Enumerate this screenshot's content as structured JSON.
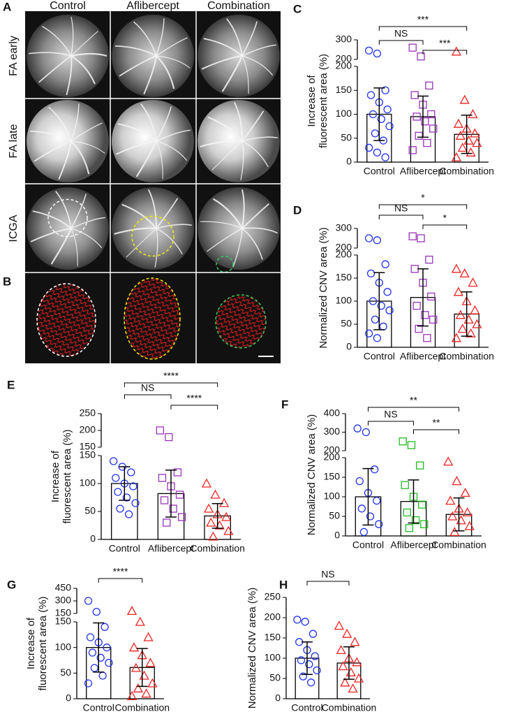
{
  "figure_a": {
    "label": "A",
    "columns": [
      "Control",
      "Aflibercept",
      "Combination"
    ],
    "rows": [
      "FA early",
      "FA late",
      "ICGA"
    ]
  },
  "figure_b": {
    "label": "B"
  },
  "chart_data": [
    {
      "type": "bar",
      "panel": "C",
      "ylabel": [
        "Increase of",
        "fluorescent area (%)"
      ],
      "categories": [
        "Control",
        "Aflibercept",
        "Combination"
      ],
      "values": [
        100,
        95,
        58
      ],
      "errors": [
        55,
        43,
        40
      ],
      "points": [
        [
          245,
          230,
          150,
          140,
          125,
          110,
          100,
          90,
          75,
          60,
          45,
          30,
          20,
          10
        ],
        [
          260,
          215,
          160,
          140,
          120,
          100,
          95,
          85,
          70,
          55,
          40,
          25
        ],
        [
          240,
          130,
          100,
          80,
          70,
          60,
          55,
          45,
          40,
          30,
          20,
          10
        ]
      ],
      "colors": [
        "#2233ee",
        "#9933bb",
        "#ee2222"
      ],
      "markers": [
        "circle",
        "square",
        "triangle"
      ],
      "ylim": [
        0,
        200
      ],
      "yticks": [
        0,
        50,
        100,
        150,
        200
      ],
      "upper_ylim": [
        200,
        300
      ],
      "upper_yticks": [
        200,
        300
      ],
      "significance": [
        {
          "from": 0,
          "to": 2,
          "label": "***"
        },
        {
          "from": 0,
          "to": 1,
          "label": "NS"
        },
        {
          "from": 1,
          "to": 2,
          "label": "***"
        }
      ]
    },
    {
      "type": "bar",
      "panel": "D",
      "ylabel": [
        "Normalized CNV area (%)"
      ],
      "categories": [
        "Control",
        "Aflibercept",
        "Combination"
      ],
      "values": [
        100,
        108,
        72
      ],
      "errors": [
        62,
        62,
        48
      ],
      "points": [
        [
          250,
          240,
          180,
          160,
          140,
          120,
          100,
          90,
          80,
          60,
          45,
          30,
          20
        ],
        [
          260,
          250,
          190,
          170,
          140,
          110,
          90,
          70,
          60,
          40,
          20
        ],
        [
          170,
          160,
          140,
          120,
          100,
          80,
          70,
          60,
          50,
          40,
          30,
          20
        ]
      ],
      "colors": [
        "#2233ee",
        "#9933bb",
        "#ee2222"
      ],
      "markers": [
        "circle",
        "square",
        "triangle"
      ],
      "ylim": [
        0,
        200
      ],
      "yticks": [
        0,
        50,
        100,
        150,
        200
      ],
      "upper_ylim": [
        200,
        300
      ],
      "upper_yticks": [
        200,
        300
      ],
      "significance": [
        {
          "from": 0,
          "to": 2,
          "label": "*"
        },
        {
          "from": 0,
          "to": 1,
          "label": "NS"
        },
        {
          "from": 1,
          "to": 2,
          "label": "*"
        }
      ]
    },
    {
      "type": "bar",
      "panel": "E",
      "ylabel": [
        "Increase of",
        "fluorescent area (%)"
      ],
      "categories": [
        "Control",
        "Aflibercept",
        "Combination"
      ],
      "values": [
        100,
        82,
        42
      ],
      "errors": [
        30,
        42,
        22
      ],
      "points": [
        [
          140,
          130,
          120,
          110,
          100,
          95,
          85,
          75,
          65,
          55,
          45
        ],
        [
          200,
          180,
          120,
          110,
          95,
          80,
          70,
          55,
          40,
          30
        ],
        [
          100,
          80,
          65,
          55,
          45,
          40,
          30,
          25,
          15,
          5
        ]
      ],
      "colors": [
        "#2233ee",
        "#9933bb",
        "#ee2222"
      ],
      "markers": [
        "circle",
        "square",
        "triangle"
      ],
      "ylim": [
        0,
        150
      ],
      "yticks": [
        0,
        50,
        100,
        150
      ],
      "upper_ylim": [
        150,
        250
      ],
      "upper_yticks": [
        150,
        200,
        250
      ],
      "significance": [
        {
          "from": 0,
          "to": 2,
          "label": "****"
        },
        {
          "from": 0,
          "to": 1,
          "label": "NS"
        },
        {
          "from": 1,
          "to": 2,
          "label": "****"
        }
      ]
    },
    {
      "type": "bar",
      "panel": "F",
      "ylabel": [
        "Normalized CNV area (%)"
      ],
      "categories": [
        "Control",
        "Aflibercept",
        "Combination"
      ],
      "values": [
        100,
        88,
        55
      ],
      "errors": [
        72,
        55,
        42
      ],
      "points": [
        [
          320,
          300,
          170,
          140,
          110,
          90,
          70,
          50,
          30,
          10
        ],
        [
          250,
          230,
          180,
          130,
          100,
          80,
          60,
          40,
          30,
          20
        ],
        [
          190,
          140,
          110,
          90,
          70,
          60,
          50,
          40,
          25,
          10
        ]
      ],
      "colors": [
        "#2233ee",
        "#22bb22",
        "#ee2222"
      ],
      "markers": [
        "circle",
        "square",
        "triangle"
      ],
      "ylim": [
        0,
        200
      ],
      "yticks": [
        0,
        50,
        100,
        150,
        200
      ],
      "upper_ylim": [
        200,
        400
      ],
      "upper_yticks": [
        200,
        300,
        400
      ],
      "significance": [
        {
          "from": 0,
          "to": 2,
          "label": "**"
        },
        {
          "from": 0,
          "to": 1,
          "label": "NS"
        },
        {
          "from": 1,
          "to": 2,
          "label": "**"
        }
      ]
    },
    {
      "type": "bar",
      "panel": "G",
      "ylabel": [
        "Increase of",
        "fluorescent area (%)"
      ],
      "categories": [
        "Control",
        "Combination"
      ],
      "values": [
        100,
        61
      ],
      "errors": [
        48,
        37
      ],
      "points": [
        [
          300,
          170,
          140,
          120,
          110,
          100,
          90,
          80,
          70,
          60,
          45,
          30
        ],
        [
          180,
          150,
          120,
          100,
          85,
          70,
          60,
          45,
          30,
          20,
          10,
          5
        ]
      ],
      "colors": [
        "#2233ee",
        "#ee2222"
      ],
      "markers": [
        "circle",
        "triangle"
      ],
      "ylim": [
        0,
        150
      ],
      "yticks": [
        0,
        50,
        100,
        150
      ],
      "upper_ylim": [
        150,
        450
      ],
      "upper_yticks": [
        150,
        300,
        450
      ],
      "significance": [
        {
          "from": 0,
          "to": 1,
          "label": "****"
        }
      ]
    },
    {
      "type": "bar",
      "panel": "H",
      "ylabel": [
        "Normalized CNV area (%)"
      ],
      "categories": [
        "Control",
        "Combination"
      ],
      "values": [
        100,
        88
      ],
      "errors": [
        40,
        40
      ],
      "points": [
        [
          195,
          190,
          160,
          140,
          120,
          105,
          95,
          85,
          70,
          55,
          40
        ],
        [
          180,
          160,
          140,
          120,
          100,
          90,
          80,
          65,
          50,
          40,
          25
        ]
      ],
      "colors": [
        "#2233ee",
        "#ee2222"
      ],
      "markers": [
        "circle",
        "triangle"
      ],
      "ylim": [
        0,
        250
      ],
      "yticks": [
        0,
        50,
        100,
        150,
        200,
        250
      ],
      "significance": [
        {
          "from": 0,
          "to": 1,
          "label": "NS"
        }
      ]
    }
  ]
}
